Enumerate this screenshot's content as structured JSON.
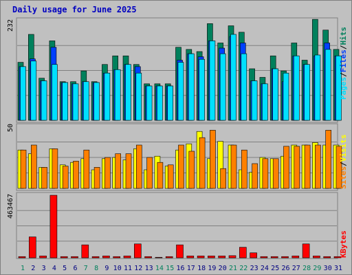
{
  "title": "Daily usage for June 2025",
  "colors": {
    "hits": "#00805c",
    "files": "#0040ff",
    "pages": "#00e0ff",
    "visits": "#ffff00",
    "sites": "#ff8000",
    "kbytes": "#ff0000",
    "weekend_day": "#00805c",
    "weekday": "#000080"
  },
  "panels": {
    "hits": {
      "max_label": "232",
      "legend": {
        "pages": "Pages",
        "files": "Files",
        "hits": "Hits",
        "sep": "/"
      }
    },
    "visits": {
      "max_label": "50",
      "legend": {
        "sites": "Sites",
        "visits": "Visits",
        "sep": "/"
      }
    },
    "kbytes": {
      "max_label": "463467",
      "legend": {
        "kbytes": "KBytes"
      }
    }
  },
  "chart_data": {
    "type": "bar",
    "title": "Daily usage for June 2025",
    "categories": [
      "1",
      "2",
      "3",
      "4",
      "5",
      "6",
      "7",
      "8",
      "9",
      "10",
      "11",
      "12",
      "13",
      "14",
      "15",
      "16",
      "17",
      "18",
      "19",
      "20",
      "21",
      "22",
      "23",
      "24",
      "25",
      "26",
      "27",
      "28",
      "29",
      "30",
      "31"
    ],
    "weekend_days": [
      1,
      7,
      8,
      14,
      15,
      21,
      22,
      28,
      29
    ],
    "hits_panel": {
      "ymax": 232,
      "series": [
        {
          "name": "Hits",
          "values": [
            135,
            200,
            98,
            185,
            90,
            90,
            115,
            90,
            130,
            150,
            150,
            130,
            85,
            85,
            85,
            170,
            165,
            160,
            225,
            180,
            220,
            205,
            120,
            100,
            150,
            115,
            180,
            140,
            235,
            210,
            165
          ]
        },
        {
          "name": "Files",
          "values": [
            125,
            143,
            92,
            170,
            88,
            85,
            90,
            88,
            110,
            118,
            130,
            125,
            80,
            80,
            80,
            140,
            155,
            148,
            185,
            168,
            195,
            180,
            92,
            85,
            120,
            90,
            150,
            130,
            150,
            180,
            150
          ]
        },
        {
          "name": "Pages",
          "values": [
            125,
            138,
            92,
            130,
            88,
            85,
            90,
            88,
            110,
            118,
            130,
            110,
            80,
            80,
            80,
            135,
            155,
            142,
            185,
            155,
            200,
            155,
            92,
            85,
            120,
            110,
            150,
            130,
            152,
            165,
            150
          ]
        }
      ]
    },
    "visits_panel": {
      "ymax": 50,
      "series": [
        {
          "name": "Visits",
          "values": [
            31,
            28,
            17,
            32,
            19,
            21,
            24,
            15,
            24,
            25,
            23,
            32,
            15,
            26,
            18,
            31,
            36,
            46,
            24,
            38,
            35,
            15,
            13,
            25,
            24,
            26,
            35,
            35,
            37,
            35,
            35
          ]
        },
        {
          "name": "Sites",
          "values": [
            31,
            35,
            17,
            32,
            18,
            22,
            31,
            17,
            25,
            28,
            28,
            35,
            25,
            21,
            19,
            35,
            30,
            41,
            47,
            16,
            35,
            31,
            20,
            24,
            24,
            34,
            34,
            35,
            35,
            47,
            34
          ]
        }
      ]
    },
    "kbytes_panel": {
      "ymax": 463467,
      "series": [
        {
          "name": "KBytes",
          "values": [
            9000,
            155000,
            14000,
            470000,
            9000,
            9000,
            96000,
            9000,
            14000,
            9000,
            14000,
            103000,
            9000,
            4000,
            9000,
            96000,
            14000,
            14000,
            14000,
            14000,
            16000,
            78000,
            37000,
            9000,
            9000,
            9000,
            14000,
            103000,
            14000,
            9000,
            9000
          ]
        }
      ]
    }
  }
}
